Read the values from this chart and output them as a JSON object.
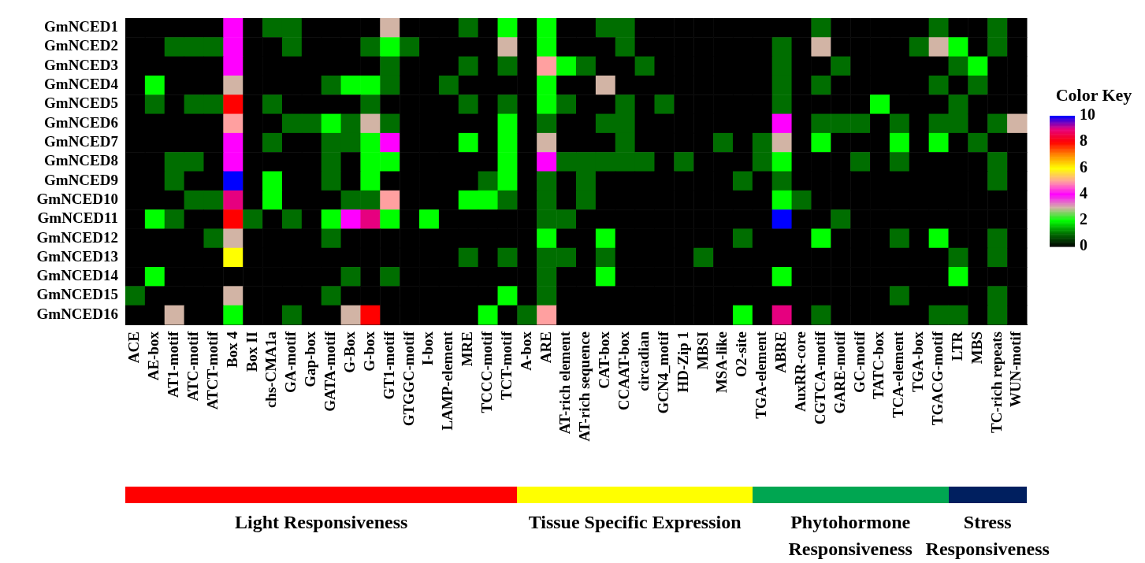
{
  "chart_data": {
    "type": "heatmap",
    "clabel": "Color Key",
    "clim": [
      0,
      10
    ],
    "cticks": [
      0,
      2,
      4,
      6,
      8,
      10
    ],
    "legend": false,
    "grid": false,
    "categories": [
      "ACE",
      "AE-box",
      "AT1-motif",
      "ATC-motif",
      "ATCT-motif",
      "Box 4",
      "Box II",
      "chs-CMA1a",
      "GA-motif",
      "Gap-box",
      "GATA-motif",
      "G-Box",
      "G-box",
      "GT1-motif",
      "GTGGC-motif",
      "I-box",
      "LAMP-element",
      "MRE",
      "TCCC-motif",
      "TCT-motif",
      "A-box",
      "ARE",
      "AT-rich element",
      "AT-rich sequence",
      "CAT-box",
      "CCAAT-box",
      "circadian",
      "GCN4_motif",
      "HD-Zip 1",
      "MBSI",
      "MSA-like",
      "O2-site",
      "TGA-element",
      "ABRE",
      "AuxRR-core",
      "CGTCA-motif",
      "GARE-motif",
      "GC-motif",
      "TATC-box",
      "TCA-element",
      "TGA-box",
      "TGACG-motif",
      "LTR",
      "MBS",
      "TC-rich repeats",
      "WUN-motif"
    ],
    "y_categories": [
      "GmNCED1",
      "GmNCED2",
      "GmNCED3",
      "GmNCED4",
      "GmNCED5",
      "GmNCED6",
      "GmNCED7",
      "GmNCED8",
      "GmNCED9",
      "GmNCED10",
      "GmNCED11",
      "GmNCED12",
      "GmNCED13",
      "GmNCED14",
      "GmNCED15",
      "GmNCED16"
    ],
    "cells": [
      [
        0,
        0,
        0,
        0,
        0,
        4,
        0,
        1,
        1,
        0,
        0,
        0,
        0,
        3,
        0,
        0,
        0,
        1,
        0,
        2,
        0,
        2,
        0,
        0,
        1,
        1,
        0,
        0,
        0,
        0,
        0,
        0,
        0,
        0,
        0,
        1,
        0,
        0,
        0,
        0,
        0,
        1,
        0,
        0,
        1,
        0
      ],
      [
        0,
        0,
        1,
        1,
        1,
        4,
        0,
        0,
        1,
        0,
        0,
        0,
        1,
        2,
        1,
        0,
        0,
        0,
        0,
        3,
        0,
        2,
        0,
        0,
        0,
        1,
        0,
        0,
        0,
        0,
        0,
        0,
        0,
        1,
        0,
        3,
        0,
        0,
        0,
        0,
        1,
        3,
        2,
        0,
        1,
        0
      ],
      [
        0,
        0,
        0,
        0,
        0,
        4,
        0,
        0,
        0,
        0,
        0,
        0,
        0,
        1,
        0,
        0,
        0,
        1,
        0,
        1,
        0,
        5,
        2,
        1,
        0,
        0,
        1,
        0,
        0,
        0,
        0,
        0,
        0,
        1,
        0,
        0,
        1,
        0,
        0,
        0,
        0,
        0,
        1,
        2,
        0,
        0
      ],
      [
        0,
        2,
        0,
        0,
        0,
        3,
        0,
        0,
        0,
        0,
        1,
        2,
        2,
        1,
        0,
        0,
        1,
        0,
        0,
        0,
        0,
        2,
        0,
        0,
        3,
        0,
        0,
        0,
        0,
        0,
        0,
        0,
        0,
        1,
        0,
        1,
        0,
        0,
        0,
        0,
        0,
        1,
        0,
        1,
        0,
        0
      ],
      [
        0,
        1,
        0,
        1,
        1,
        8,
        0,
        1,
        0,
        0,
        0,
        0,
        1,
        0,
        0,
        0,
        0,
        1,
        0,
        1,
        0,
        2,
        1,
        0,
        0,
        1,
        0,
        1,
        0,
        0,
        0,
        0,
        0,
        1,
        0,
        0,
        0,
        0,
        2,
        0,
        0,
        0,
        1,
        0,
        0,
        0
      ],
      [
        0,
        0,
        0,
        0,
        0,
        5,
        0,
        0,
        1,
        1,
        2,
        1,
        3,
        1,
        0,
        0,
        0,
        0,
        0,
        2,
        0,
        1,
        0,
        0,
        1,
        1,
        0,
        0,
        0,
        0,
        0,
        0,
        0,
        4,
        0,
        1,
        1,
        1,
        0,
        1,
        0,
        1,
        1,
        0,
        1,
        3
      ],
      [
        0,
        0,
        0,
        0,
        0,
        4,
        0,
        1,
        0,
        0,
        1,
        1,
        2,
        4,
        0,
        0,
        0,
        2,
        0,
        2,
        0,
        3,
        0,
        0,
        0,
        1,
        0,
        0,
        0,
        0,
        1,
        0,
        1,
        3,
        0,
        2,
        0,
        0,
        0,
        2,
        0,
        2,
        0,
        1,
        0,
        0
      ],
      [
        0,
        0,
        1,
        1,
        0,
        4,
        0,
        0,
        0,
        0,
        1,
        0,
        2,
        2,
        0,
        0,
        0,
        0,
        0,
        2,
        0,
        4,
        1,
        1,
        1,
        1,
        1,
        0,
        1,
        0,
        0,
        0,
        1,
        2,
        0,
        0,
        0,
        1,
        0,
        1,
        0,
        0,
        0,
        0,
        1,
        0
      ],
      [
        0,
        0,
        1,
        0,
        0,
        10,
        0,
        2,
        0,
        0,
        1,
        0,
        2,
        0,
        0,
        0,
        0,
        0,
        1,
        2,
        0,
        1,
        0,
        1,
        0,
        0,
        0,
        0,
        0,
        0,
        0,
        1,
        0,
        1,
        0,
        0,
        0,
        0,
        0,
        0,
        0,
        0,
        0,
        0,
        1,
        0
      ],
      [
        0,
        0,
        0,
        1,
        1,
        9,
        0,
        2,
        0,
        0,
        0,
        1,
        1,
        5,
        0,
        0,
        0,
        2,
        2,
        1,
        0,
        1,
        0,
        1,
        0,
        0,
        0,
        0,
        0,
        0,
        0,
        0,
        0,
        2,
        1,
        0,
        0,
        0,
        0,
        0,
        0,
        0,
        0,
        0,
        0,
        0
      ],
      [
        0,
        2,
        1,
        0,
        0,
        8,
        1,
        0,
        1,
        0,
        2,
        4,
        9,
        2,
        0,
        2,
        0,
        0,
        0,
        0,
        0,
        1,
        1,
        0,
        0,
        0,
        0,
        0,
        0,
        0,
        0,
        0,
        0,
        10,
        0,
        0,
        1,
        0,
        0,
        0,
        0,
        0,
        0,
        0,
        0,
        0
      ],
      [
        0,
        0,
        0,
        0,
        1,
        3,
        0,
        0,
        0,
        0,
        1,
        0,
        0,
        0,
        0,
        0,
        0,
        0,
        0,
        0,
        0,
        2,
        0,
        0,
        2,
        0,
        0,
        0,
        0,
        0,
        0,
        1,
        0,
        0,
        0,
        2,
        0,
        0,
        0,
        1,
        0,
        2,
        0,
        0,
        1,
        0
      ],
      [
        0,
        0,
        0,
        0,
        0,
        6,
        0,
        0,
        0,
        0,
        0,
        0,
        0,
        0,
        0,
        0,
        0,
        1,
        0,
        1,
        0,
        1,
        1,
        0,
        1,
        0,
        0,
        0,
        0,
        1,
        0,
        0,
        0,
        0,
        0,
        0,
        0,
        0,
        0,
        0,
        0,
        0,
        1,
        0,
        1,
        0
      ],
      [
        0,
        2,
        0,
        0,
        0,
        0,
        0,
        0,
        0,
        0,
        0,
        1,
        0,
        1,
        0,
        0,
        0,
        0,
        0,
        0,
        0,
        1,
        0,
        0,
        2,
        0,
        0,
        0,
        0,
        0,
        0,
        0,
        0,
        2,
        0,
        0,
        0,
        0,
        0,
        0,
        0,
        0,
        2,
        0,
        0,
        0
      ],
      [
        1,
        0,
        0,
        0,
        0,
        3,
        0,
        0,
        0,
        0,
        1,
        0,
        0,
        0,
        0,
        0,
        0,
        0,
        0,
        2,
        0,
        1,
        0,
        0,
        0,
        0,
        0,
        0,
        0,
        0,
        0,
        0,
        0,
        0,
        0,
        0,
        0,
        0,
        0,
        1,
        0,
        0,
        0,
        0,
        1,
        0
      ],
      [
        0,
        0,
        3,
        0,
        0,
        2,
        0,
        0,
        1,
        0,
        0,
        3,
        8,
        0,
        0,
        0,
        0,
        0,
        2,
        0,
        1,
        5,
        0,
        0,
        0,
        0,
        0,
        0,
        0,
        0,
        0,
        2,
        0,
        9,
        0,
        1,
        0,
        0,
        0,
        0,
        0,
        1,
        1,
        0,
        1,
        0
      ]
    ],
    "annotations": [
      "Light Responsiveness",
      "Tissue Specific Expression",
      "Phytohormone Responsiveness",
      "Stress Responsiveness"
    ]
  }
}
